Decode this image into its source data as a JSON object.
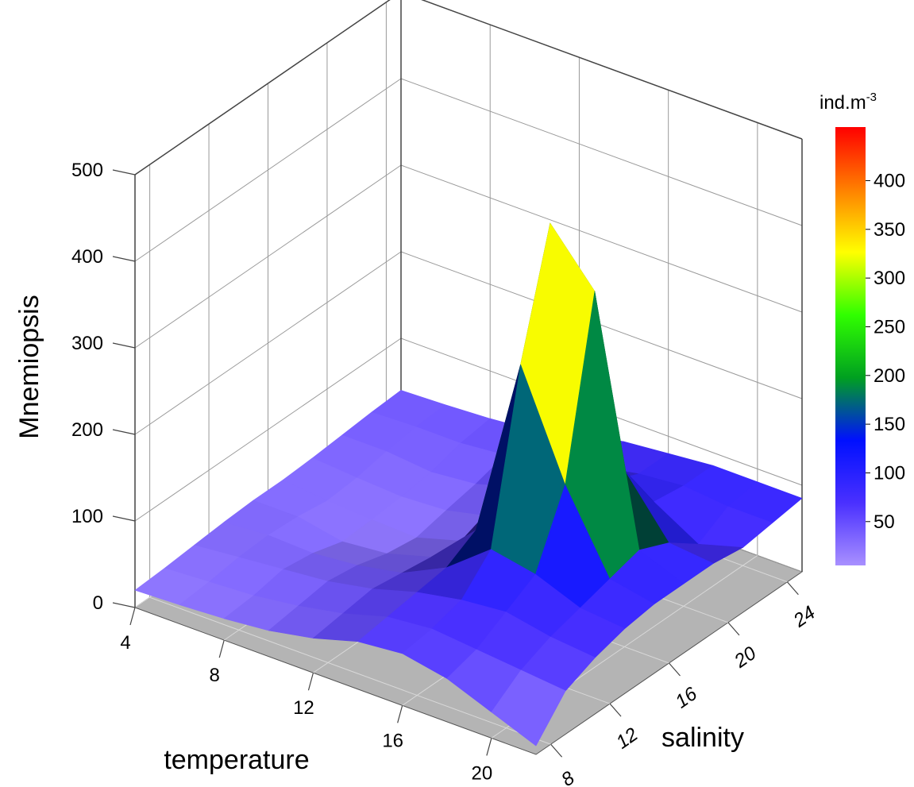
{
  "chart_data": {
    "type": "surface",
    "x_label": "temperature",
    "y_label": "salinity",
    "z_label": "Mnemiopsis",
    "xlim": [
      4,
      22
    ],
    "ylim": [
      7,
      25
    ],
    "zlim": [
      0,
      500
    ],
    "xticks": [
      4,
      8,
      12,
      16,
      20
    ],
    "yticks": [
      8,
      12,
      16,
      20,
      24
    ],
    "zticks": [
      0,
      100,
      200,
      300,
      400,
      500
    ],
    "x": [
      4,
      6,
      8,
      10,
      12,
      14,
      16,
      18,
      20,
      22
    ],
    "y": [
      7,
      9,
      11,
      13,
      15,
      17,
      19,
      21,
      23,
      25
    ],
    "z": [
      [
        20,
        22,
        25,
        28,
        30,
        30,
        32,
        35,
        38,
        40
      ],
      [
        22,
        25,
        30,
        32,
        30,
        25,
        28,
        35,
        40,
        42
      ],
      [
        25,
        28,
        35,
        30,
        20,
        22,
        25,
        30,
        40,
        45
      ],
      [
        30,
        35,
        40,
        35,
        25,
        20,
        28,
        35,
        45,
        50
      ],
      [
        40,
        45,
        50,
        45,
        40,
        35,
        40,
        50,
        60,
        65
      ],
      [
        55,
        60,
        65,
        70,
        90,
        110,
        80,
        70,
        70,
        75
      ],
      [
        60,
        65,
        75,
        110,
        300,
        440,
        200,
        95,
        80,
        80
      ],
      [
        50,
        60,
        80,
        100,
        180,
        380,
        150,
        90,
        85,
        85
      ],
      [
        30,
        55,
        70,
        80,
        90,
        100,
        85,
        60,
        80,
        85
      ],
      [
        10,
        50,
        65,
        75,
        80,
        80,
        80,
        75,
        80,
        85
      ]
    ],
    "colorbar": {
      "label": "ind.m",
      "label_sup": "-3",
      "clim": [
        5,
        455
      ],
      "ticks": [
        50,
        100,
        150,
        200,
        250,
        300,
        350,
        400
      ],
      "colors": [
        "#a890ff",
        "#4a30ff",
        "#0010ff",
        "#00a020",
        "#30ff00",
        "#ffff00",
        "#ff8000",
        "#ff0000"
      ]
    },
    "floor_color": "#b4b4b4",
    "grid": true
  }
}
